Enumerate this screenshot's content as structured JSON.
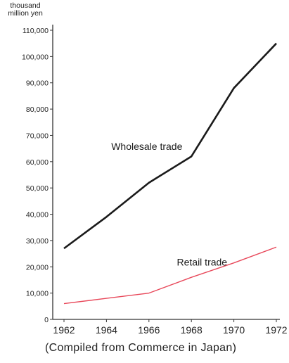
{
  "unit_label": [
    "thousand",
    "million yen"
  ],
  "source_note": "(Compiled from Commerce in Japan)",
  "colors": {
    "wholesale": "#1a1a1a",
    "retail": "#e8485a",
    "axis": "#333333"
  },
  "chart_data": {
    "type": "line",
    "title": "",
    "xlabel": "",
    "ylabel": "thousand million yen",
    "x": [
      1962,
      1964,
      1966,
      1968,
      1970,
      1972
    ],
    "xlim": [
      1962,
      1972
    ],
    "ylim": [
      0,
      110000
    ],
    "y_ticks": [
      0,
      10000,
      20000,
      30000,
      40000,
      50000,
      60000,
      70000,
      80000,
      90000,
      100000,
      110000
    ],
    "y_tick_labels": [
      "0",
      "10,000",
      "20,000",
      "30,000",
      "40,000",
      "50,000",
      "60,000",
      "70,000",
      "80,000",
      "90,000",
      "100,000",
      "110,000"
    ],
    "x_tick_labels": [
      "1962",
      "1964",
      "1966",
      "1968",
      "1970",
      "1972"
    ],
    "grid": false,
    "legend": "none",
    "series": [
      {
        "name": "Wholesale trade",
        "values": [
          27000,
          39000,
          52000,
          62000,
          88000,
          105000
        ]
      },
      {
        "name": "Retail trade",
        "values": [
          6000,
          8000,
          10000,
          16000,
          21500,
          27500
        ]
      }
    ]
  }
}
